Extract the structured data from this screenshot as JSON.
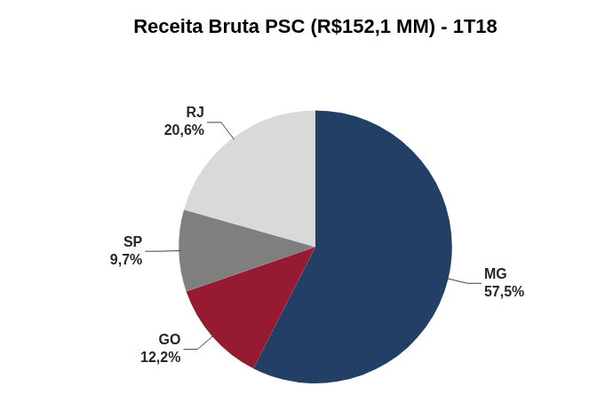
{
  "chart_data": {
    "type": "pie",
    "title": "Receita Bruta PSC (R$152,1 MM) - 1T18",
    "categories": [
      "MG",
      "GO",
      "SP",
      "RJ"
    ],
    "values": [
      57.5,
      12.2,
      9.7,
      20.6
    ],
    "value_labels": [
      "57,5%",
      "12,2%",
      "9,7%",
      "20,6%"
    ],
    "colors": [
      "#243f66",
      "#951a32",
      "#7f7f7f",
      "#d9d9d9"
    ],
    "data_labels": true
  }
}
